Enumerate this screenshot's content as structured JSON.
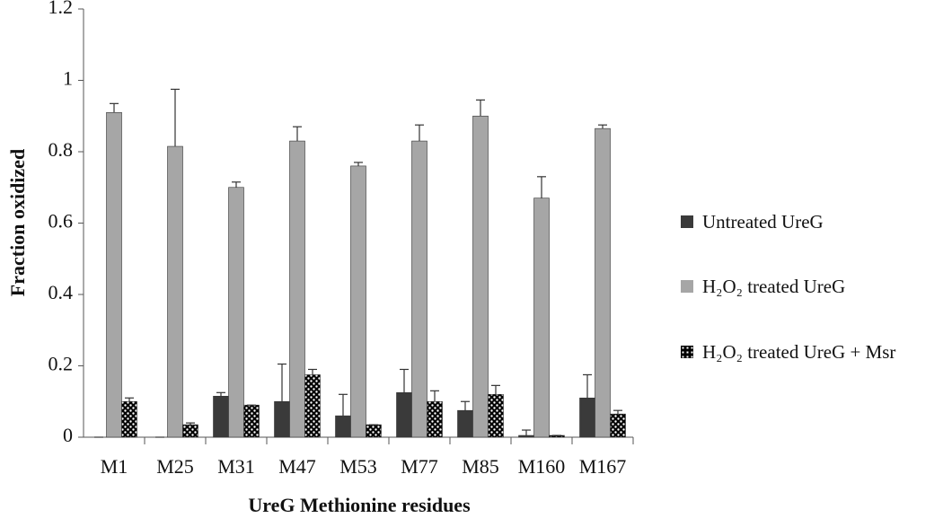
{
  "chart_data": {
    "type": "bar",
    "x_label": "UreG Methionine residues",
    "y_label": "Fraction oxidized",
    "categories": [
      "M1",
      "M25",
      "M31",
      "M47",
      "M53",
      "M77",
      "M85",
      "M160",
      "M167"
    ],
    "series": [
      {
        "name": "Untreated UreG",
        "color": "#3a3a3a",
        "values": [
          0,
          0,
          0.115,
          0.1,
          0.06,
          0.125,
          0.075,
          0.005,
          0.11
        ],
        "errors": [
          0,
          0,
          0.01,
          0.105,
          0.06,
          0.065,
          0.025,
          0.015,
          0.065
        ]
      },
      {
        "name": "H₂O₂ treated UreG",
        "color": "#a6a6a6",
        "values": [
          0.91,
          0.815,
          0.7,
          0.83,
          0.76,
          0.83,
          0.9,
          0.67,
          0.865
        ],
        "errors": [
          0.025,
          0.16,
          0.015,
          0.04,
          0.01,
          0.045,
          0.045,
          0.06,
          0.01
        ]
      },
      {
        "name": "H₂O₂ treated UreG + Msr",
        "color": "#000000",
        "pattern": "dots",
        "values": [
          0.1,
          0.035,
          0.09,
          0.175,
          0.035,
          0.1,
          0.12,
          0.005,
          0.065
        ],
        "errors": [
          0.01,
          0.005,
          0,
          0.015,
          0,
          0.03,
          0.025,
          0,
          0.01
        ]
      }
    ],
    "ylim": [
      0,
      1.2
    ],
    "yticks": [
      0,
      0.2,
      0.4,
      0.6,
      0.8,
      1,
      1.2
    ],
    "grid": false,
    "legend": "right"
  }
}
